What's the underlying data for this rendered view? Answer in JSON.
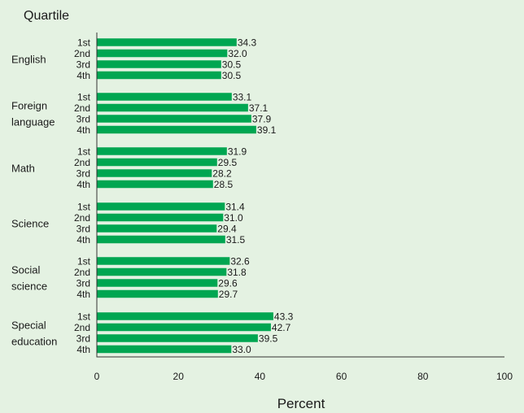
{
  "chart_data": {
    "type": "bar",
    "orientation": "horizontal",
    "grouped_by": "subject",
    "xlabel": "Percent",
    "ylabel": "Quartile",
    "xlim": [
      0,
      100
    ],
    "xticks": [
      "0",
      "20",
      "40",
      "60",
      "80",
      "100"
    ],
    "grid": false,
    "legend": "none",
    "bar_color": "#00a651",
    "background_color": "#e4f2e2",
    "groups": [
      {
        "label": "English",
        "bars": [
          {
            "quartile": "1st",
            "value": 34.3,
            "label": "34.3"
          },
          {
            "quartile": "2nd",
            "value": 32.0,
            "label": "32.0"
          },
          {
            "quartile": "3rd",
            "value": 30.5,
            "label": "30.5"
          },
          {
            "quartile": "4th",
            "value": 30.5,
            "label": "30.5"
          }
        ]
      },
      {
        "label": "Foreign language",
        "bars": [
          {
            "quartile": "1st",
            "value": 33.1,
            "label": "33.1"
          },
          {
            "quartile": "2nd",
            "value": 37.1,
            "label": "37.1"
          },
          {
            "quartile": "3rd",
            "value": 37.9,
            "label": "37.9"
          },
          {
            "quartile": "4th",
            "value": 39.1,
            "label": "39.1"
          }
        ]
      },
      {
        "label": "Math",
        "bars": [
          {
            "quartile": "1st",
            "value": 31.9,
            "label": "31.9"
          },
          {
            "quartile": "2nd",
            "value": 29.5,
            "label": "29.5"
          },
          {
            "quartile": "3rd",
            "value": 28.2,
            "label": "28.2"
          },
          {
            "quartile": "4th",
            "value": 28.5,
            "label": "28.5"
          }
        ]
      },
      {
        "label": "Science",
        "bars": [
          {
            "quartile": "1st",
            "value": 31.4,
            "label": "31.4"
          },
          {
            "quartile": "2nd",
            "value": 31.0,
            "label": "31.0"
          },
          {
            "quartile": "3rd",
            "value": 29.4,
            "label": "29.4"
          },
          {
            "quartile": "4th",
            "value": 31.5,
            "label": "31.5"
          }
        ]
      },
      {
        "label": "Social science",
        "bars": [
          {
            "quartile": "1st",
            "value": 32.6,
            "label": "32.6"
          },
          {
            "quartile": "2nd",
            "value": 31.8,
            "label": "31.8"
          },
          {
            "quartile": "3rd",
            "value": 29.6,
            "label": "29.6"
          },
          {
            "quartile": "4th",
            "value": 29.7,
            "label": "29.7"
          }
        ]
      },
      {
        "label": "Special education",
        "bars": [
          {
            "quartile": "1st",
            "value": 43.3,
            "label": "43.3"
          },
          {
            "quartile": "2nd",
            "value": 42.7,
            "label": "42.7"
          },
          {
            "quartile": "3rd",
            "value": 39.5,
            "label": "39.5"
          },
          {
            "quartile": "4th",
            "value": 33.0,
            "label": "33.0"
          }
        ]
      }
    ]
  }
}
